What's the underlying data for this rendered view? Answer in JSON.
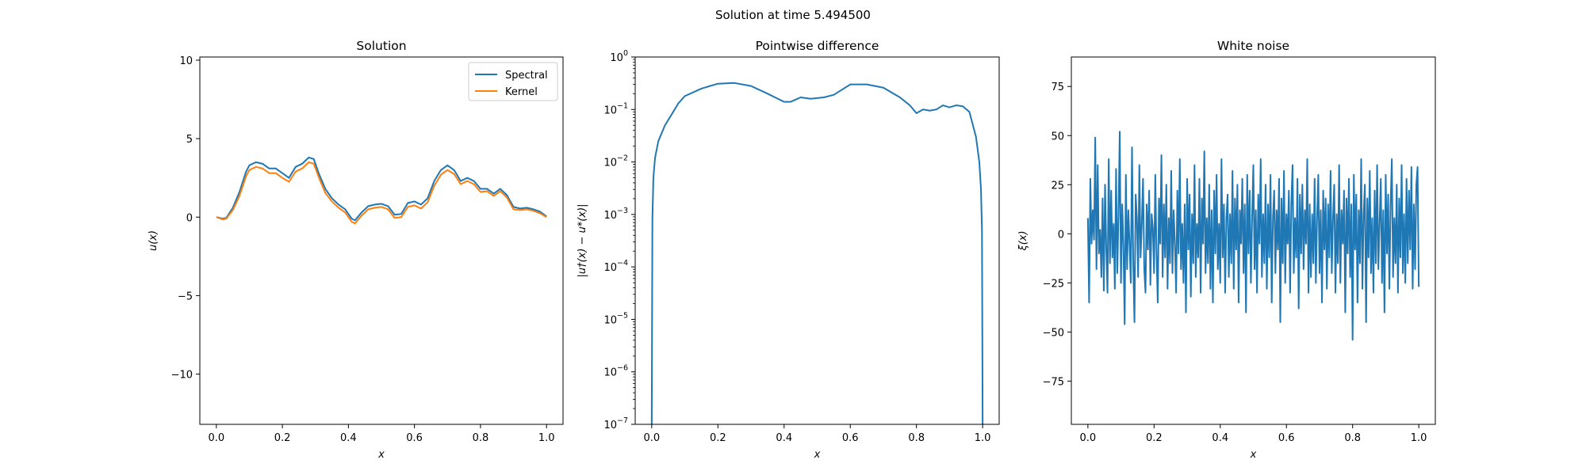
{
  "figure": {
    "suptitle": "Solution at time 5.494500"
  },
  "colors": {
    "blue": "#1f77b4",
    "orange": "#ff7f0e"
  },
  "chart_data": [
    {
      "type": "line",
      "title": "Solution",
      "xlabel": "x",
      "ylabel": "u(x)",
      "xlim": [
        -0.05,
        1.05
      ],
      "ylim": [
        -13.2,
        10.2
      ],
      "xticks": [
        0.0,
        0.2,
        0.4,
        0.6,
        0.8,
        1.0
      ],
      "xtick_labels": [
        "0.0",
        "0.2",
        "0.4",
        "0.6",
        "0.8",
        "1.0"
      ],
      "yticks": [
        -10,
        -5,
        0,
        5,
        10
      ],
      "ytick_labels": [
        "−10",
        "−5",
        "0",
        "5",
        "10"
      ],
      "legend": "top-right",
      "series": [
        {
          "name": "Spectral",
          "color": "#1f77b4",
          "x": [
            0.0,
            0.02,
            0.03,
            0.05,
            0.07,
            0.09,
            0.1,
            0.12,
            0.14,
            0.16,
            0.18,
            0.2,
            0.22,
            0.24,
            0.26,
            0.28,
            0.295,
            0.31,
            0.33,
            0.35,
            0.37,
            0.39,
            0.41,
            0.42,
            0.44,
            0.46,
            0.48,
            0.5,
            0.52,
            0.54,
            0.56,
            0.58,
            0.6,
            0.62,
            0.64,
            0.66,
            0.68,
            0.7,
            0.72,
            0.74,
            0.76,
            0.78,
            0.8,
            0.82,
            0.84,
            0.86,
            0.88,
            0.9,
            0.92,
            0.94,
            0.96,
            0.98,
            1.0
          ],
          "y": [
            0.0,
            -0.1,
            -0.05,
            0.6,
            1.6,
            2.9,
            3.3,
            3.5,
            3.4,
            3.1,
            3.1,
            2.8,
            2.5,
            3.2,
            3.4,
            3.8,
            3.7,
            2.8,
            1.8,
            1.2,
            0.8,
            0.5,
            -0.1,
            -0.2,
            0.3,
            0.7,
            0.8,
            0.85,
            0.7,
            0.15,
            0.2,
            0.9,
            1.0,
            0.8,
            1.2,
            2.3,
            3.0,
            3.3,
            3.0,
            2.3,
            2.5,
            2.3,
            1.8,
            1.8,
            1.5,
            1.8,
            1.4,
            0.65,
            0.55,
            0.6,
            0.5,
            0.35,
            0.05
          ]
        },
        {
          "name": "Kernel",
          "color": "#ff7f0e",
          "x": [
            0.0,
            0.02,
            0.03,
            0.05,
            0.07,
            0.09,
            0.1,
            0.12,
            0.14,
            0.16,
            0.18,
            0.2,
            0.22,
            0.24,
            0.26,
            0.28,
            0.295,
            0.31,
            0.33,
            0.35,
            0.37,
            0.39,
            0.41,
            0.42,
            0.44,
            0.46,
            0.48,
            0.5,
            0.52,
            0.54,
            0.56,
            0.58,
            0.6,
            0.62,
            0.64,
            0.66,
            0.68,
            0.7,
            0.72,
            0.74,
            0.76,
            0.78,
            0.8,
            0.82,
            0.84,
            0.86,
            0.88,
            0.9,
            0.92,
            0.94,
            0.96,
            0.98,
            1.0
          ],
          "y": [
            0.0,
            -0.15,
            -0.1,
            0.45,
            1.35,
            2.6,
            3.0,
            3.2,
            3.1,
            2.8,
            2.8,
            2.5,
            2.25,
            2.9,
            3.1,
            3.5,
            3.4,
            2.55,
            1.55,
            1.0,
            0.6,
            0.3,
            -0.3,
            -0.4,
            0.1,
            0.5,
            0.6,
            0.65,
            0.5,
            -0.05,
            0.0,
            0.65,
            0.75,
            0.55,
            0.95,
            2.0,
            2.7,
            3.0,
            2.75,
            2.1,
            2.3,
            2.1,
            1.6,
            1.65,
            1.35,
            1.65,
            1.25,
            0.5,
            0.45,
            0.5,
            0.4,
            0.25,
            0.0
          ]
        }
      ]
    },
    {
      "type": "line",
      "title": "Pointwise difference",
      "xlabel": "x",
      "ylabel": "|u†(x) − u*(x)|",
      "xlim": [
        -0.05,
        1.05
      ],
      "ylim": [
        1e-07,
        1
      ],
      "yscale": "log",
      "xticks": [
        0.0,
        0.2,
        0.4,
        0.6,
        0.8,
        1.0
      ],
      "xtick_labels": [
        "0.0",
        "0.2",
        "0.4",
        "0.6",
        "0.8",
        "1.0"
      ],
      "yticks": [
        -7,
        -6,
        -5,
        -4,
        -3,
        -2,
        -1,
        0
      ],
      "series": [
        {
          "color": "#1f77b4",
          "x": [
            0.0,
            0.002,
            0.005,
            0.01,
            0.02,
            0.04,
            0.06,
            0.08,
            0.1,
            0.15,
            0.2,
            0.25,
            0.3,
            0.35,
            0.4,
            0.42,
            0.45,
            0.48,
            0.52,
            0.55,
            0.58,
            0.6,
            0.65,
            0.7,
            0.75,
            0.78,
            0.8,
            0.82,
            0.84,
            0.86,
            0.88,
            0.9,
            0.92,
            0.94,
            0.96,
            0.98,
            0.99,
            0.995,
            0.998,
            1.0
          ],
          "y": [
            1e-07,
            0.0008,
            0.005,
            0.012,
            0.025,
            0.05,
            0.08,
            0.13,
            0.18,
            0.25,
            0.31,
            0.32,
            0.28,
            0.2,
            0.14,
            0.14,
            0.17,
            0.16,
            0.17,
            0.19,
            0.25,
            0.3,
            0.3,
            0.26,
            0.17,
            0.12,
            0.085,
            0.1,
            0.095,
            0.1,
            0.12,
            0.11,
            0.12,
            0.115,
            0.09,
            0.03,
            0.01,
            0.003,
            0.0005,
            1e-07
          ]
        }
      ]
    },
    {
      "type": "line",
      "title": "White noise",
      "xlabel": "x",
      "ylabel": "ξ(x)",
      "xlim": [
        -0.05,
        1.05
      ],
      "ylim": [
        -97,
        90
      ],
      "xticks": [
        0.0,
        0.2,
        0.4,
        0.6,
        0.8,
        1.0
      ],
      "xtick_labels": [
        "0.0",
        "0.2",
        "0.4",
        "0.6",
        "0.8",
        "1.0"
      ],
      "yticks": [
        -75,
        -50,
        -25,
        0,
        25,
        50,
        75
      ],
      "ytick_labels": [
        "−75",
        "−50",
        "−25",
        "0",
        "25",
        "50",
        "75"
      ],
      "series": [
        {
          "color": "#1f77b4",
          "x_start": 0.0,
          "x_end": 1.0,
          "y": [
            8,
            -35,
            28,
            -5,
            12,
            -3,
            49,
            -18,
            35,
            -10,
            2,
            -22,
            18,
            -29,
            25,
            -8,
            -30,
            38,
            -15,
            22,
            -12,
            5,
            -28,
            33,
            -20,
            10,
            52,
            -25,
            15,
            -6,
            -46,
            30,
            -18,
            12,
            -5,
            -25,
            44,
            -15,
            -45,
            20,
            8,
            -22,
            35,
            -12,
            5,
            28,
            -18,
            -30,
            15,
            -8,
            22,
            -26,
            10,
            3,
            -20,
            30,
            -10,
            -35,
            18,
            -5,
            40,
            -22,
            15,
            -12,
            25,
            -28,
            8,
            -15,
            32,
            -20,
            12,
            -5,
            -30,
            22,
            -10,
            38,
            -18,
            5,
            -25,
            15,
            -40,
            28,
            -8,
            20,
            -32,
            10,
            -15,
            35,
            -22,
            5,
            -12,
            28,
            -30,
            18,
            -5,
            42,
            -20,
            8,
            -15,
            25,
            -28,
            12,
            -35,
            22,
            -10,
            30,
            -18,
            5,
            -25,
            38,
            -12,
            15,
            -30,
            8,
            20,
            -22,
            10,
            -15,
            32,
            -28,
            18,
            -8,
            25,
            -35,
            12,
            -5,
            28,
            -20,
            15,
            -40,
            30,
            -10,
            22,
            -25,
            8,
            35,
            -18,
            12,
            -30,
            20,
            -5,
            38,
            -22,
            10,
            -15,
            25,
            -28,
            15,
            -12,
            30,
            -35,
            8,
            22,
            -20,
            12,
            -8,
            28,
            -45,
            18,
            -15,
            32,
            -25,
            10,
            -5,
            22,
            -30,
            15,
            35,
            -20,
            8,
            -12,
            28,
            -38,
            20,
            -10,
            25,
            -18,
            12,
            -5,
            38,
            -30,
            15,
            -22,
            10,
            -15,
            28,
            -25,
            8,
            30,
            -20,
            12,
            -35,
            22,
            -8,
            18,
            -28,
            15,
            -12,
            32,
            -20,
            8,
            25,
            -30,
            10,
            -15,
            35,
            -25,
            12,
            -5,
            22,
            -40,
            18,
            -10,
            28,
            -22,
            15,
            -54,
            30,
            -8,
            20,
            -35,
            12,
            -15,
            38,
            -28,
            10,
            25,
            -45,
            18,
            -12,
            32,
            -20,
            8,
            -30,
            22,
            -15,
            35,
            -18,
            5,
            28,
            -25,
            12,
            -40,
            30,
            -10,
            20,
            -28,
            15,
            38,
            -22,
            8,
            -15,
            25,
            -30,
            18,
            -12,
            35,
            -20,
            10,
            -25,
            28,
            -15,
            22,
            -8,
            34,
            -28,
            15,
            -18,
            25,
            34,
            -27
          ]
        }
      ]
    }
  ]
}
